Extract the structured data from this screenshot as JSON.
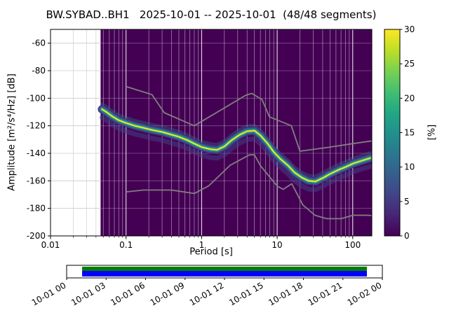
{
  "figure": {
    "title": "BW.SYBAD..BH1   2025-10-01 -- 2025-10-01  (48/48 segments)"
  },
  "axes": {
    "xlabel": "Period [s]",
    "ylabel": "Amplitude [m²/s⁴/Hz] [dB]",
    "xtick_values": [
      0.01,
      0.1,
      1,
      10,
      100
    ],
    "xtick_labels": [
      "0.01",
      "0.1",
      "1",
      "10",
      "100"
    ],
    "ytick_values": [
      -60,
      -80,
      -100,
      -120,
      -140,
      -160,
      -180,
      -200
    ],
    "ytick_labels": [
      "-60",
      "-80",
      "-100",
      "-120",
      "-140",
      "-160",
      "-180",
      "-200"
    ]
  },
  "colorbar": {
    "label": "[%]",
    "tick_values": [
      0,
      5,
      10,
      15,
      20,
      25,
      30
    ],
    "tick_labels": [
      "0",
      "5",
      "10",
      "15",
      "20",
      "25",
      "30"
    ],
    "range": [
      0,
      30
    ],
    "colormap": "viridis",
    "stops": [
      "#440154",
      "#482475",
      "#414487",
      "#355f8d",
      "#2a788e",
      "#21918c",
      "#22a884",
      "#44bf70",
      "#7ad151",
      "#bddf26",
      "#fde725"
    ]
  },
  "timeline": {
    "tick_labels": [
      "10-01 00",
      "10-01 03",
      "10-01 06",
      "10-01 09",
      "10-01 12",
      "10-01 15",
      "10-01 18",
      "10-01 21",
      "10-02 00"
    ],
    "bar": {
      "green": "#008000",
      "blue": "#0000ff",
      "start_frac": 0.049,
      "end_frac": 0.951
    }
  },
  "chart_data": {
    "type": "heatmap",
    "title": "BW.SYBAD..BH1   2025-10-01 -- 2025-10-01  (48/48 segments)",
    "xlabel": "Period [s]",
    "ylabel": "Amplitude [m²/s⁴/Hz] [dB]",
    "xscale": "log",
    "xlim": [
      0.01,
      179
    ],
    "ylim": [
      -200,
      -50
    ],
    "grid": true,
    "background_color": "#440154",
    "data_period_range": [
      0.046,
      179
    ],
    "colorbar": {
      "label": "[%]",
      "range": [
        0,
        30
      ],
      "colormap": "viridis"
    },
    "segments": "48/48",
    "series": [
      {
        "name": "psd-mode-ridge",
        "description": "Bright mode of the probabilistic PSD histogram [period s, amplitude dB]",
        "points": [
          [
            0.048,
            -108
          ],
          [
            0.055,
            -110
          ],
          [
            0.065,
            -113
          ],
          [
            0.08,
            -116
          ],
          [
            0.1,
            -118
          ],
          [
            0.13,
            -120
          ],
          [
            0.17,
            -121.5
          ],
          [
            0.22,
            -123
          ],
          [
            0.3,
            -124.5
          ],
          [
            0.4,
            -126.5
          ],
          [
            0.5,
            -128
          ],
          [
            0.65,
            -130.5
          ],
          [
            0.8,
            -133
          ],
          [
            1.0,
            -135.5
          ],
          [
            1.3,
            -137
          ],
          [
            1.6,
            -137.5
          ],
          [
            2.0,
            -135
          ],
          [
            2.5,
            -130.5
          ],
          [
            3.2,
            -126.5
          ],
          [
            4.0,
            -124
          ],
          [
            5.0,
            -123.5
          ],
          [
            6.0,
            -127
          ],
          [
            7.5,
            -133
          ],
          [
            9.0,
            -139
          ],
          [
            11,
            -144
          ],
          [
            14,
            -149
          ],
          [
            17,
            -154
          ],
          [
            21,
            -157.5
          ],
          [
            26,
            -160
          ],
          [
            32,
            -160.5
          ],
          [
            40,
            -158
          ],
          [
            50,
            -155
          ],
          [
            65,
            -152
          ],
          [
            80,
            -150
          ],
          [
            100,
            -147.5
          ],
          [
            130,
            -145.5
          ],
          [
            170,
            -143.5
          ]
        ]
      },
      {
        "name": "noise-model-high",
        "description": "Peterson new high noise model (gray)",
        "points": [
          [
            0.1,
            -91.5
          ],
          [
            0.22,
            -97.4
          ],
          [
            0.32,
            -110.5
          ],
          [
            0.8,
            -120
          ],
          [
            3.8,
            -98
          ],
          [
            4.6,
            -96.5
          ],
          [
            6.3,
            -101
          ],
          [
            7.9,
            -113.5
          ],
          [
            15.4,
            -120
          ],
          [
            20,
            -138.5
          ],
          [
            50,
            -135.5
          ],
          [
            100,
            -133
          ],
          [
            179,
            -131
          ]
        ]
      },
      {
        "name": "noise-model-low",
        "description": "Peterson new low noise model (gray)",
        "points": [
          [
            0.1,
            -168.0
          ],
          [
            0.17,
            -166.7
          ],
          [
            0.4,
            -166.7
          ],
          [
            0.8,
            -169.2
          ],
          [
            1.24,
            -163.7
          ],
          [
            2.4,
            -148.6
          ],
          [
            4.3,
            -141.1
          ],
          [
            5.0,
            -141.1
          ],
          [
            6.0,
            -149.0
          ],
          [
            10.0,
            -163.8
          ],
          [
            12.0,
            -166.2
          ],
          [
            15.6,
            -162.1
          ],
          [
            21.9,
            -177.5
          ],
          [
            31.6,
            -185.0
          ],
          [
            45,
            -187.5
          ],
          [
            70,
            -187.5
          ],
          [
            101,
            -185.0
          ],
          [
            154,
            -185.0
          ],
          [
            179,
            -185.2
          ]
        ]
      }
    ]
  }
}
